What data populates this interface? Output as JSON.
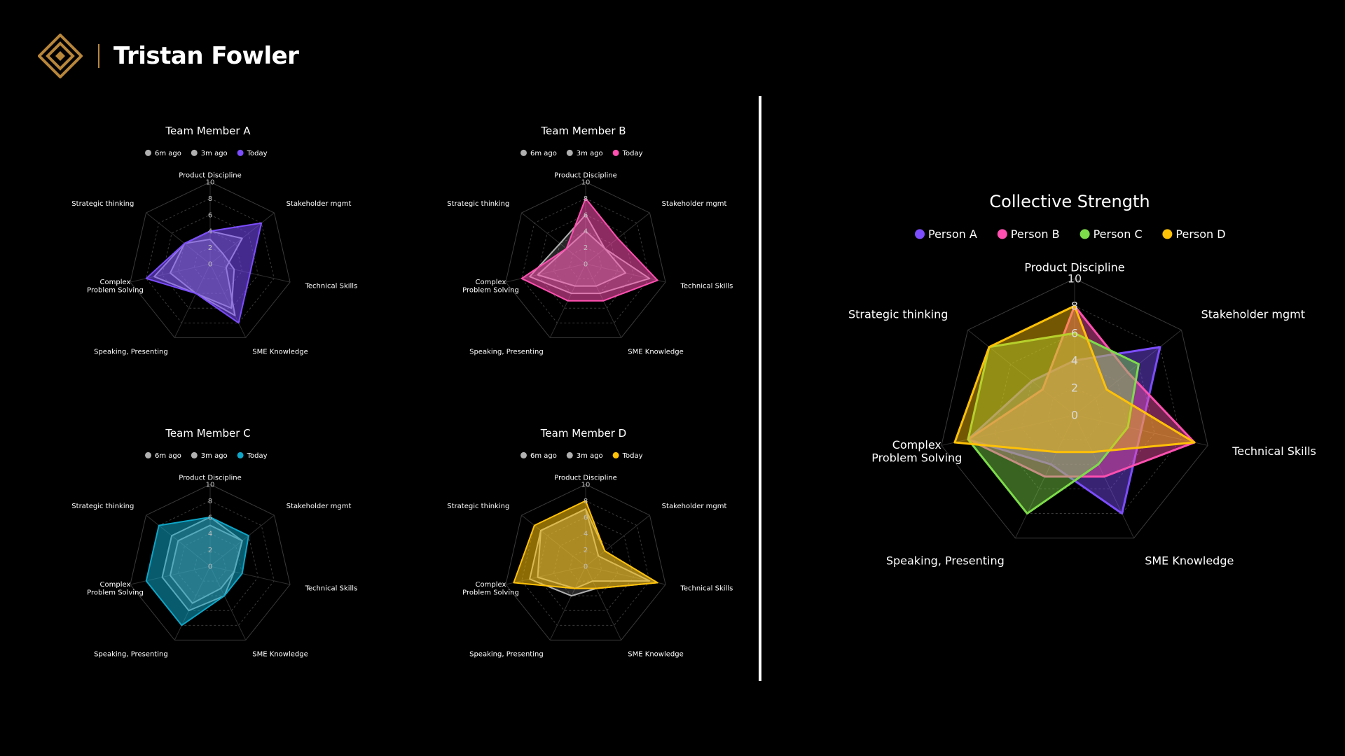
{
  "brand": {
    "name": "Tristan Fowler",
    "accent": "#b8863b"
  },
  "axes": [
    "Product Discipline",
    "Stakeholder mgmt",
    "Technical Skills",
    "SME Knowledge",
    "Speaking, Presenting",
    "Complex Problem Solving",
    "Strategic thinking"
  ],
  "chart_data": [
    {
      "type": "radar",
      "title": "Team Member A",
      "rlim": [
        0,
        10
      ],
      "ticks": [
        0,
        2,
        4,
        6,
        8,
        10
      ],
      "series": [
        {
          "name": "6m ago",
          "color": "#b0b0b0",
          "values": [
            3,
            2,
            3,
            6,
            4,
            5,
            4
          ]
        },
        {
          "name": "3m ago",
          "color": "#b0b0b0",
          "values": [
            4,
            5,
            2,
            7,
            4,
            7,
            4
          ]
        },
        {
          "name": "Today",
          "color": "#7c4dff",
          "values": [
            4,
            8,
            5,
            8,
            4,
            8,
            4
          ]
        }
      ]
    },
    {
      "type": "radar",
      "title": "Team Member B",
      "rlim": [
        0,
        10
      ],
      "ticks": [
        0,
        2,
        4,
        6,
        8,
        10
      ],
      "series": [
        {
          "name": "6m ago",
          "color": "#b0b0b0",
          "values": [
            4,
            3,
            5,
            3,
            3,
            6,
            3
          ]
        },
        {
          "name": "3m ago",
          "color": "#b0b0b0",
          "values": [
            6,
            3,
            8,
            4,
            4,
            7,
            4
          ]
        },
        {
          "name": "Today",
          "color": "#ff4fb0",
          "values": [
            8,
            5,
            9,
            5,
            5,
            8,
            3
          ]
        }
      ]
    },
    {
      "type": "radar",
      "title": "Team Member C",
      "rlim": [
        0,
        10
      ],
      "ticks": [
        0,
        2,
        4,
        6,
        8,
        10
      ],
      "series": [
        {
          "name": "6m ago",
          "color": "#b0b0b0",
          "values": [
            5,
            5,
            3,
            3,
            5,
            5,
            5
          ]
        },
        {
          "name": "3m ago",
          "color": "#b0b0b0",
          "values": [
            6,
            5,
            3,
            4,
            6,
            6,
            6
          ]
        },
        {
          "name": "Today",
          "color": "#0ea5c6",
          "values": [
            6,
            6,
            4,
            4,
            8,
            8,
            8
          ]
        }
      ]
    },
    {
      "type": "radar",
      "title": "Team Member D",
      "rlim": [
        0,
        10
      ],
      "ticks": [
        0,
        2,
        4,
        6,
        8,
        10
      ],
      "series": [
        {
          "name": "6m ago",
          "color": "#b0b0b0",
          "values": [
            7,
            2,
            8,
            2,
            3,
            6,
            7
          ]
        },
        {
          "name": "3m ago",
          "color": "#b0b0b0",
          "values": [
            7,
            3,
            9,
            3,
            4,
            7,
            7
          ]
        },
        {
          "name": "Today",
          "color": "#ffc107",
          "values": [
            8,
            3,
            9,
            3,
            3,
            9,
            8
          ]
        }
      ]
    },
    {
      "type": "radar",
      "title": "Collective Strength",
      "rlim": [
        0,
        10
      ],
      "ticks": [
        0,
        2,
        4,
        6,
        8,
        10
      ],
      "series": [
        {
          "name": "Person A",
          "color": "#7c4dff",
          "values": [
            4,
            8,
            5,
            8,
            4,
            8,
            4
          ]
        },
        {
          "name": "Person B",
          "color": "#ff4fb0",
          "values": [
            8,
            5,
            9,
            5,
            5,
            8,
            3
          ]
        },
        {
          "name": "Person C",
          "color": "#7ddc4a",
          "values": [
            6,
            6,
            4,
            4,
            8,
            8,
            8
          ]
        },
        {
          "name": "Person D",
          "color": "#ffc107",
          "values": [
            8,
            3,
            9,
            3,
            3,
            9,
            8
          ]
        }
      ]
    }
  ]
}
